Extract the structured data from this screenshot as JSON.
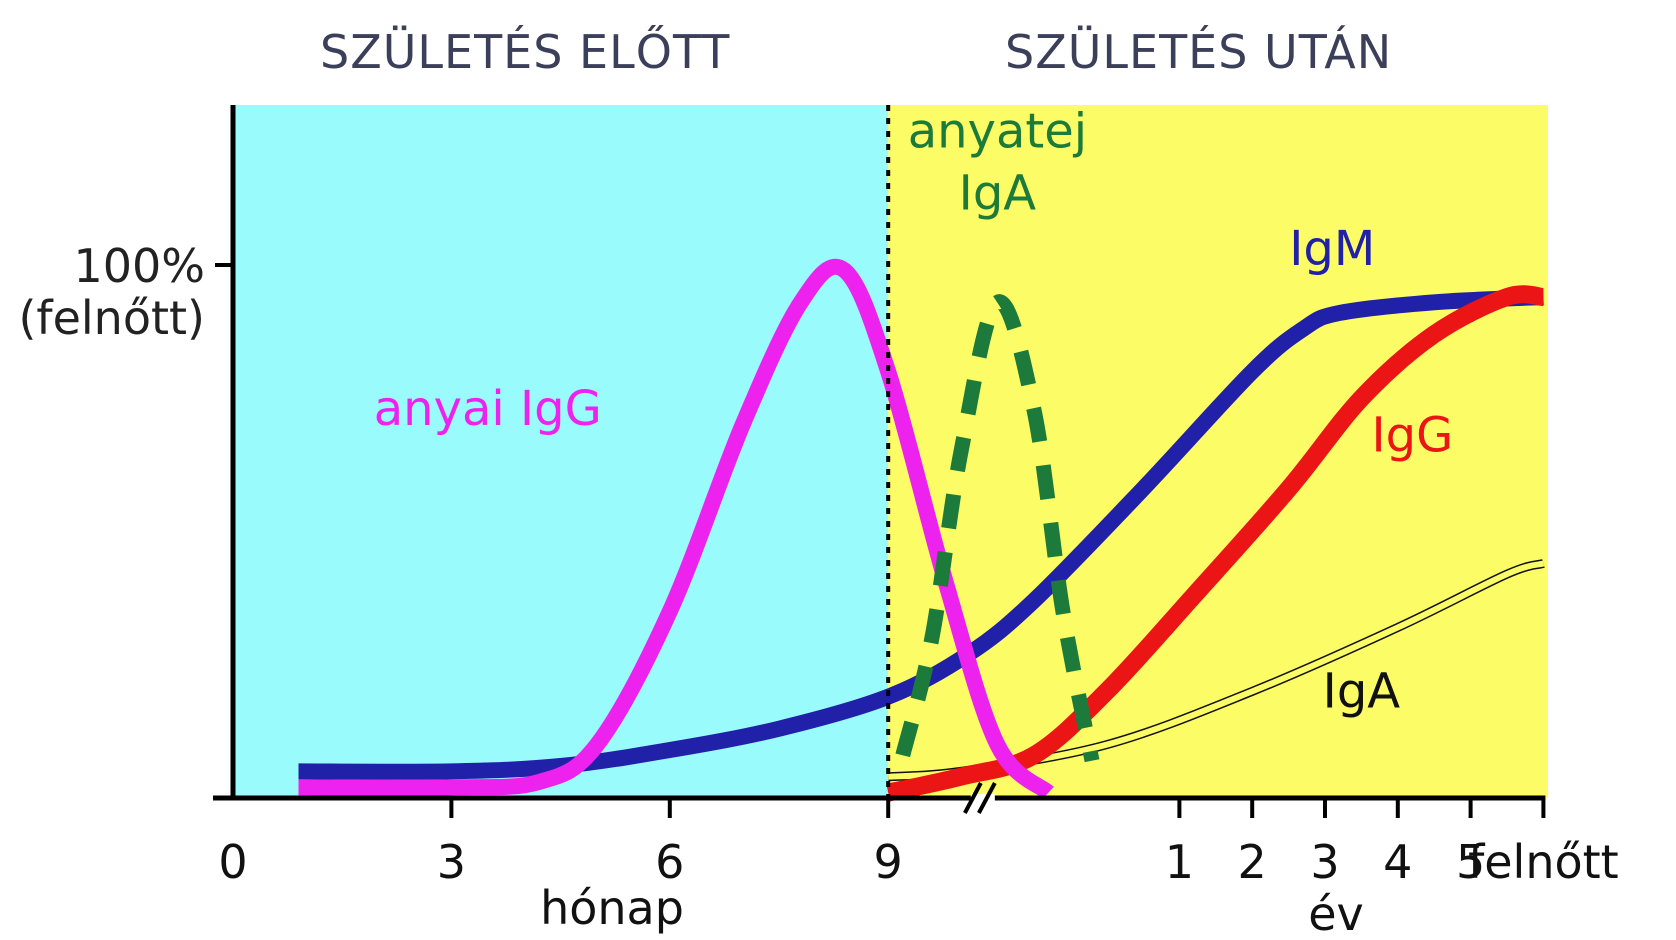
{
  "chart_data": {
    "type": "line",
    "headers": {
      "before": "SZÜLETÉS ELŐTT",
      "after": "SZÜLETÉS UTÁN"
    },
    "ylabel_lines": [
      "100%",
      "(felnőtt)"
    ],
    "x_unit_left": "hónap",
    "x_unit_right": "év",
    "ylim": [
      0,
      100
    ],
    "x_ticks": [
      {
        "x": 0,
        "label": "0"
      },
      {
        "x": 3,
        "label": "3"
      },
      {
        "x": 6,
        "label": "6"
      },
      {
        "x": 9,
        "label": "9"
      },
      {
        "x": 13,
        "label": "1"
      },
      {
        "x": 14,
        "label": "2"
      },
      {
        "x": 15,
        "label": "3"
      },
      {
        "x": 16,
        "label": "4"
      },
      {
        "x": 17,
        "label": "5"
      },
      {
        "x": 18,
        "label": "felnőtt"
      }
    ],
    "birth_x": 9,
    "axis_break_x": 10.3,
    "regions": [
      {
        "name": "before-birth",
        "from": 0,
        "to": 9,
        "color": "#99fbfb"
      },
      {
        "name": "after-birth",
        "from": 9,
        "to": 19.4,
        "color": "#fcfc66"
      }
    ],
    "series": [
      {
        "name": "IgM",
        "color": "#2020a8",
        "style": "solid",
        "width": 16,
        "label_at": [
          15.1,
          100
        ],
        "points": [
          [
            0.9,
            5
          ],
          [
            3,
            5
          ],
          [
            4.5,
            6
          ],
          [
            6,
            9
          ],
          [
            7.5,
            13
          ],
          [
            9,
            19
          ],
          [
            10.1,
            27
          ],
          [
            11,
            37
          ],
          [
            12.5,
            58
          ],
          [
            14,
            80
          ],
          [
            14.7,
            88
          ],
          [
            15.2,
            91
          ],
          [
            16.5,
            93
          ],
          [
            18,
            94
          ]
        ]
      },
      {
        "name": "IgG",
        "color": "#ec1515",
        "style": "solid",
        "width": 18,
        "label_at": [
          16.2,
          65
        ],
        "points": [
          [
            9,
            1
          ],
          [
            10,
            4
          ],
          [
            11,
            8
          ],
          [
            12,
            20
          ],
          [
            13.2,
            38
          ],
          [
            14.5,
            58
          ],
          [
            15.5,
            75
          ],
          [
            16.5,
            87
          ],
          [
            17.5,
            94
          ],
          [
            18,
            94
          ]
        ]
      },
      {
        "name": "IgA",
        "color": "#111111",
        "style": "double-thin",
        "width": 2,
        "label_at": [
          15.5,
          17
        ],
        "points": [
          [
            9,
            4
          ],
          [
            10,
            5
          ],
          [
            12,
            10
          ],
          [
            14,
            20
          ],
          [
            16,
            32
          ],
          [
            17.5,
            42
          ],
          [
            18,
            44
          ]
        ]
      },
      {
        "name": "anyai IgG",
        "color": "#ee22ee",
        "style": "solid",
        "width": 16,
        "label_at": [
          3.5,
          70
        ],
        "points": [
          [
            0.9,
            2
          ],
          [
            3,
            2
          ],
          [
            4.2,
            3
          ],
          [
            5,
            10
          ],
          [
            6,
            35
          ],
          [
            7,
            70
          ],
          [
            7.8,
            93
          ],
          [
            8.4,
            99
          ],
          [
            9,
            80
          ],
          [
            9.8,
            40
          ],
          [
            10.5,
            10
          ],
          [
            11.2,
            1
          ]
        ]
      },
      {
        "name": "anyatej IgA",
        "color": "#1c7a3a",
        "style": "dashed",
        "width": 15,
        "label_lines": [
          "anyatej",
          "IgA"
        ],
        "label_at": [
          10.5,
          122
        ],
        "points": [
          [
            9.2,
            8
          ],
          [
            9.6,
            30
          ],
          [
            10,
            65
          ],
          [
            10.5,
            93
          ],
          [
            11,
            73
          ],
          [
            11.4,
            35
          ],
          [
            11.8,
            7
          ]
        ]
      }
    ]
  }
}
